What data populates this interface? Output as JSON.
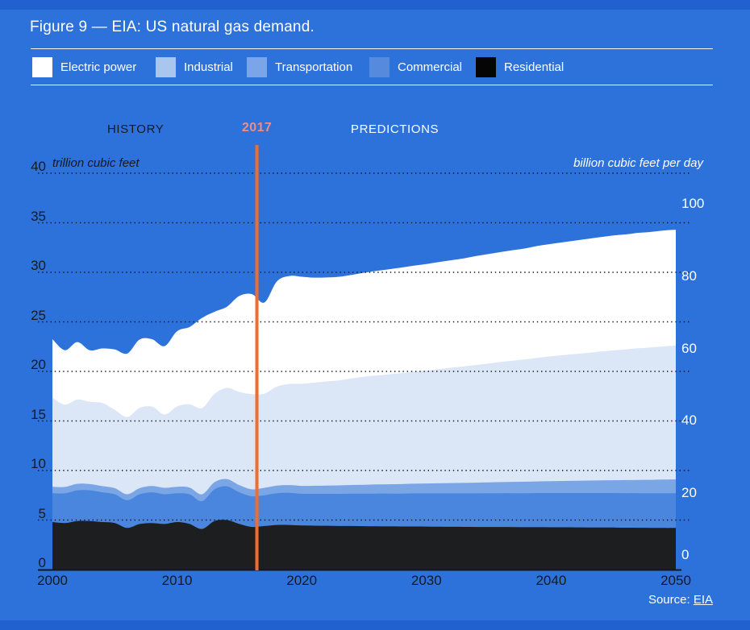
{
  "header": {
    "title": "Figure 9 — EIA: US natural gas demand."
  },
  "legend": [
    {
      "label": "Electric power",
      "color": "#ffffff"
    },
    {
      "label": "Industrial",
      "color": "#a9c6ee"
    },
    {
      "label": "Transportation",
      "color": "#7aa5e8"
    },
    {
      "label": "Commercial",
      "color": "#568add"
    },
    {
      "label": "Residential",
      "color": "#050505"
    }
  ],
  "annotations": {
    "history": "HISTORY",
    "divider_label": "2017",
    "predictions": "PREDICTIONS"
  },
  "axes": {
    "left_unit": "trillion cubic feet",
    "right_unit": "billion cubic feet per day",
    "left_ticks": [
      0,
      5,
      10,
      15,
      20,
      25,
      30,
      35,
      40
    ],
    "right_ticks": [
      0,
      20,
      40,
      60,
      80,
      100
    ],
    "x_ticks": [
      2000,
      2010,
      2020,
      2030,
      2040,
      2050
    ]
  },
  "footer": {
    "source_prefix": "Source:",
    "source_link": "EIA"
  },
  "colors": {
    "background": "#2d72db",
    "frame_bars": "#2160cf",
    "divider_line": "#f26d2b",
    "divider_label": "#f08d80",
    "grid": "#14171c",
    "dark_text": "#16191d",
    "light_text": "#ffffff"
  },
  "chart_data": {
    "type": "area",
    "stacked": true,
    "title": "EIA: US natural gas demand",
    "x_range": [
      2000,
      2050
    ],
    "x_step": 1,
    "divider_x": 2016.4,
    "left_axis": {
      "unit": "trillion cubic feet",
      "range": [
        0,
        40
      ],
      "ticks": [
        0,
        5,
        10,
        15,
        20,
        25,
        30,
        35,
        40
      ]
    },
    "right_axis": {
      "unit": "billion cubic feet per day",
      "range": [
        0,
        109.6
      ],
      "ticks": [
        0,
        20,
        40,
        60,
        80,
        100
      ]
    },
    "grid": "dotted horizontal",
    "legend_position": "top",
    "years": [
      2000,
      2001,
      2002,
      2003,
      2004,
      2005,
      2006,
      2007,
      2008,
      2009,
      2010,
      2011,
      2012,
      2013,
      2014,
      2015,
      2016,
      2017,
      2018,
      2019,
      2020,
      2021,
      2022,
      2023,
      2024,
      2025,
      2026,
      2027,
      2028,
      2029,
      2030,
      2031,
      2032,
      2033,
      2034,
      2035,
      2036,
      2037,
      2038,
      2039,
      2040,
      2041,
      2042,
      2043,
      2044,
      2045,
      2046,
      2047,
      2048,
      2049,
      2050
    ],
    "series": [
      {
        "name": "Residential",
        "color": "#1d1e20",
        "values": [
          4.8,
          4.7,
          4.9,
          4.9,
          4.8,
          4.7,
          4.2,
          4.6,
          4.7,
          4.6,
          4.8,
          4.6,
          4.1,
          4.9,
          5.0,
          4.6,
          4.3,
          4.4,
          4.5,
          4.5,
          4.45,
          4.43,
          4.42,
          4.4,
          4.4,
          4.38,
          4.37,
          4.36,
          4.35,
          4.35,
          4.34,
          4.33,
          4.32,
          4.31,
          4.3,
          4.3,
          4.3,
          4.29,
          4.28,
          4.28,
          4.27,
          4.27,
          4.26,
          4.25,
          4.25,
          4.24,
          4.23,
          4.22,
          4.21,
          4.2,
          4.2
        ]
      },
      {
        "name": "Commercial",
        "color": "#4a86de",
        "values": [
          2.9,
          3.0,
          3.1,
          3.1,
          3.0,
          2.9,
          2.8,
          3.0,
          3.1,
          3.0,
          2.9,
          3.0,
          2.8,
          3.2,
          3.4,
          3.2,
          3.1,
          3.1,
          3.2,
          3.25,
          3.2,
          3.21,
          3.22,
          3.24,
          3.26,
          3.28,
          3.3,
          3.31,
          3.32,
          3.34,
          3.35,
          3.36,
          3.37,
          3.38,
          3.39,
          3.4,
          3.41,
          3.42,
          3.43,
          3.44,
          3.45,
          3.45,
          3.46,
          3.47,
          3.47,
          3.48,
          3.48,
          3.49,
          3.49,
          3.5,
          3.5
        ]
      },
      {
        "name": "Transportation",
        "color": "#7ba6e6",
        "values": [
          0.65,
          0.64,
          0.66,
          0.63,
          0.62,
          0.61,
          0.6,
          0.62,
          0.64,
          0.65,
          0.66,
          0.68,
          0.7,
          0.72,
          0.73,
          0.72,
          0.7,
          0.75,
          0.77,
          0.78,
          0.8,
          0.82,
          0.84,
          0.86,
          0.88,
          0.9,
          0.92,
          0.94,
          0.96,
          0.98,
          1.0,
          1.02,
          1.04,
          1.06,
          1.08,
          1.1,
          1.12,
          1.14,
          1.16,
          1.18,
          1.2,
          1.22,
          1.24,
          1.26,
          1.28,
          1.3,
          1.32,
          1.34,
          1.36,
          1.38,
          1.4
        ]
      },
      {
        "name": "Industrial",
        "color": "#dbe6f7",
        "values": [
          9.0,
          8.3,
          8.5,
          8.3,
          8.4,
          7.9,
          7.8,
          8.1,
          8.0,
          7.4,
          8.1,
          8.4,
          8.7,
          8.9,
          9.2,
          9.4,
          9.6,
          9.5,
          10.0,
          10.2,
          10.3,
          10.4,
          10.5,
          10.6,
          10.75,
          10.9,
          11.0,
          11.1,
          11.2,
          11.3,
          11.4,
          11.52,
          11.64,
          11.76,
          11.88,
          12.0,
          12.12,
          12.24,
          12.36,
          12.48,
          12.6,
          12.7,
          12.8,
          12.9,
          13.0,
          13.1,
          13.2,
          13.28,
          13.36,
          13.44,
          13.5
        ]
      },
      {
        "name": "Electric power",
        "color": "#ffffff",
        "values": [
          5.9,
          5.5,
          5.8,
          5.2,
          5.5,
          6.1,
          6.4,
          6.9,
          6.8,
          6.9,
          7.6,
          7.8,
          9.1,
          8.3,
          8.2,
          9.7,
          10.1,
          9.2,
          10.6,
          10.9,
          10.8,
          10.6,
          10.5,
          10.45,
          10.45,
          10.5,
          10.55,
          10.6,
          10.65,
          10.7,
          10.75,
          10.8,
          10.85,
          10.9,
          11.0,
          11.05,
          11.1,
          11.15,
          11.2,
          11.3,
          11.35,
          11.4,
          11.45,
          11.5,
          11.55,
          11.6,
          11.6,
          11.65,
          11.65,
          11.7,
          11.7
        ]
      }
    ]
  }
}
